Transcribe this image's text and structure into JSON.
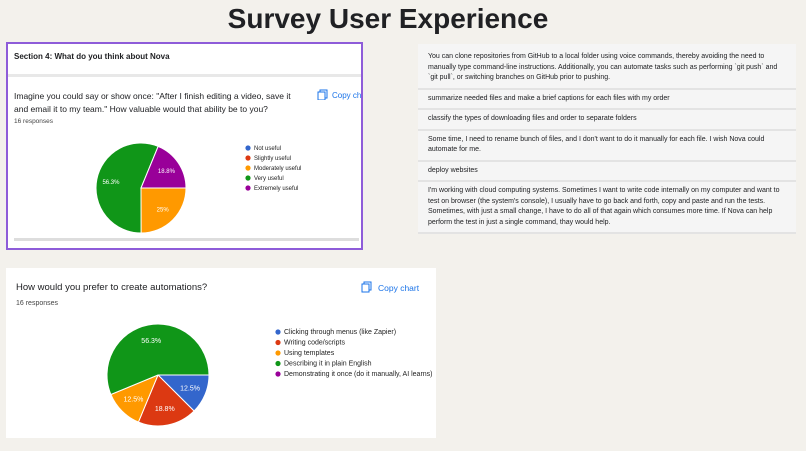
{
  "title": "Survey User Experience",
  "section": "Section 4: What do you think about Nova",
  "copy_label": "Copy chart",
  "answers": [
    "You can clone repositories from GitHub to a local folder using voice commands, thereby avoiding the need to manually type command-line instructions. Additionally, you can automate tasks such as performing `git push` and `git pull`, or switching branches on GitHub prior to pushing.",
    "summarize needed files and make a brief captions for each files with my order",
    "classify the types of downloading files and order to separate folders",
    "Some time, I need to rename bunch of files, and I don't want to do it manually for each file. I wish Nova could automate for me.",
    "deploy websites",
    "I'm working with cloud computing systems. Sometimes I want to write code internally on my computer and want to test on browser (the system's console), I usually have to go back and forth, copy and paste and run the tests. Sometimes, with just a small change, I have to do all of that again which consumes more time. If Nova can help perform the test in just a single command, thay would help."
  ],
  "chart_data": [
    {
      "type": "pie",
      "title": "Imagine you could say or show once: \"After I finish editing a video, save it and email it to my team.\" How valuable would that ability be to you?",
      "subtitle": "16 responses",
      "categories": [
        "Not useful",
        "Slightly useful",
        "Moderately useful",
        "Very useful",
        "Extremely useful"
      ],
      "values": [
        0,
        0,
        25,
        56.3,
        18.8
      ],
      "value_labels": [
        null,
        null,
        "25%",
        "56.3%",
        "18.8%"
      ],
      "colors": [
        "#3366cc",
        "#dc3912",
        "#ff9900",
        "#109618",
        "#990099"
      ]
    },
    {
      "type": "pie",
      "title": "How would you prefer to create automations?",
      "subtitle": "16 responses",
      "categories": [
        "Clicking through menus (like Zapier)",
        "Writing code/scripts",
        "Using templates",
        "Describing it in plain English",
        "Demonstrating it once (do it manually, AI learns)"
      ],
      "values": [
        12.5,
        18.8,
        12.5,
        56.3,
        0
      ],
      "value_labels": [
        "12.5%",
        "18.8%",
        "12.5%",
        "56.3%",
        null
      ],
      "colors": [
        "#3366cc",
        "#dc3912",
        "#ff9900",
        "#109618",
        "#990099"
      ]
    }
  ]
}
